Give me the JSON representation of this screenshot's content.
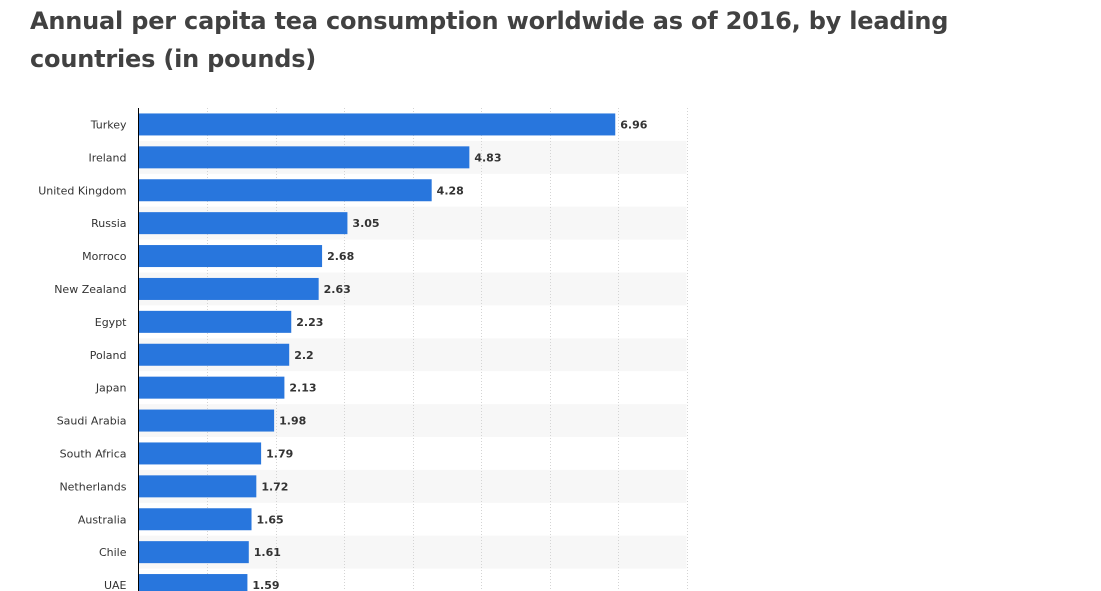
{
  "chart_data": {
    "type": "bar",
    "orientation": "horizontal",
    "title": "Annual per capita tea consumption worldwide as of 2016, by leading countries (in pounds)",
    "categories": [
      "Turkey",
      "Ireland",
      "United Kingdom",
      "Russia",
      "Morroco",
      "New Zealand",
      "Egypt",
      "Poland",
      "Japan",
      "Saudi Arabia",
      "South Africa",
      "Netherlands",
      "Australia",
      "Chile",
      "UAE"
    ],
    "values": [
      6.96,
      4.83,
      4.28,
      3.05,
      2.68,
      2.63,
      2.23,
      2.2,
      2.13,
      1.98,
      1.79,
      1.72,
      1.65,
      1.61,
      1.59
    ],
    "value_labels": [
      "6.96",
      "4.83",
      "4.28",
      "3.05",
      "2.68",
      "2.63",
      "2.23",
      "2.2",
      "2.13",
      "1.98",
      "1.79",
      "1.72",
      "1.65",
      "1.61",
      "1.59"
    ],
    "xlim": [
      0,
      8
    ],
    "xlabel": "",
    "ylabel": "",
    "grid": true,
    "bar_color": "#2876dd",
    "alt_row_color": "#f7f7f7",
    "grid_color": "#d4d4d4",
    "axis_color": "#000000"
  }
}
